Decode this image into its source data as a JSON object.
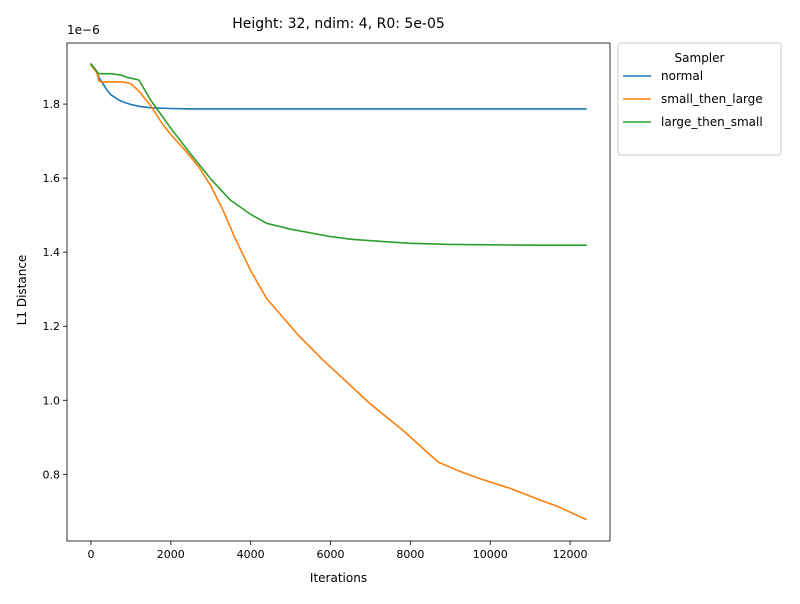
{
  "chart_data": {
    "type": "line",
    "title": "Height: 32, ndim: 4, R0: 5e-05",
    "xlabel": "Iterations",
    "ylabel": "L1 Distance",
    "y_offset_text": "1e−6",
    "xlim": [
      -600,
      13000
    ],
    "ylim": [
      0.62,
      1.965
    ],
    "xticks": [
      0,
      2000,
      4000,
      6000,
      8000,
      10000,
      12000
    ],
    "xtick_labels": [
      "0",
      "2000",
      "4000",
      "6000",
      "8000",
      "10000",
      "12000"
    ],
    "yticks": [
      0.8,
      1.0,
      1.2,
      1.4,
      1.6,
      1.8
    ],
    "ytick_labels": [
      "0.8",
      "1.0",
      "1.2",
      "1.4",
      "1.6",
      "1.8"
    ],
    "grid": false,
    "legend": {
      "title": "Sampler",
      "placement": "outside-right-top"
    },
    "series": [
      {
        "name": "normal",
        "color": "#1f77b4",
        "x": [
          0,
          100,
          200,
          300,
          400,
          500,
          600,
          700,
          800,
          1000,
          1200,
          1500,
          2000,
          2500,
          3000,
          4000,
          6000,
          8000,
          10000,
          12400
        ],
        "y": [
          1.908,
          1.895,
          1.872,
          1.855,
          1.838,
          1.825,
          1.818,
          1.811,
          1.806,
          1.799,
          1.794,
          1.79,
          1.788,
          1.787,
          1.787,
          1.787,
          1.787,
          1.787,
          1.787,
          1.787
        ]
      },
      {
        "name": "small_then_large",
        "color": "#ff7f0e",
        "x": [
          0,
          150,
          200,
          300,
          500,
          800,
          1000,
          1200,
          1500,
          1800,
          2000,
          2400,
          2700,
          3000,
          3300,
          3600,
          4000,
          4400,
          4800,
          5200,
          5800,
          6500,
          7000,
          7800,
          8400,
          8700,
          9200,
          9700,
          10500,
          11200,
          11700,
          12400
        ],
        "y": [
          1.905,
          1.885,
          1.862,
          1.86,
          1.86,
          1.86,
          1.855,
          1.835,
          1.795,
          1.745,
          1.718,
          1.67,
          1.63,
          1.58,
          1.515,
          1.44,
          1.35,
          1.275,
          1.225,
          1.175,
          1.11,
          1.04,
          0.99,
          0.92,
          0.862,
          0.833,
          0.81,
          0.79,
          0.762,
          0.733,
          0.713,
          0.678
        ]
      },
      {
        "name": "large_then_small",
        "color": "#2ca02c",
        "x": [
          0,
          100,
          200,
          300,
          500,
          700,
          800,
          900,
          1000,
          1200,
          1500,
          2000,
          2500,
          3000,
          3500,
          4000,
          4400,
          5000,
          6000,
          6500,
          7000,
          8000,
          9000,
          10000,
          11000,
          12400
        ],
        "y": [
          1.908,
          1.895,
          1.882,
          1.882,
          1.882,
          1.879,
          1.877,
          1.872,
          1.87,
          1.865,
          1.81,
          1.735,
          1.665,
          1.598,
          1.54,
          1.502,
          1.478,
          1.462,
          1.442,
          1.435,
          1.431,
          1.424,
          1.421,
          1.42,
          1.419,
          1.419
        ]
      }
    ]
  }
}
